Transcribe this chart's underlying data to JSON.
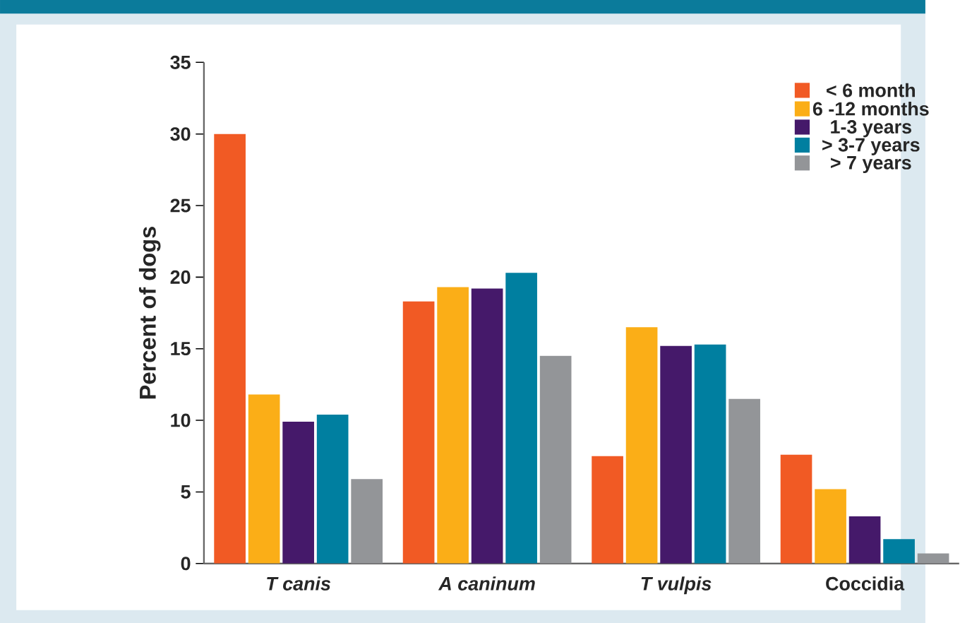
{
  "chart_data": {
    "type": "bar",
    "ylabel": "Percent of dogs",
    "categories": [
      "*T canis*",
      "*A caninum*",
      "*T vulpis*",
      "Coccidia"
    ],
    "series": [
      {
        "name": "< 6 month",
        "color": "#f15a24",
        "values": [
          30.0,
          18.3,
          7.5,
          7.6
        ]
      },
      {
        "name": "6 -12 months",
        "color": "#fbae17",
        "values": [
          11.8,
          19.3,
          16.5,
          5.2
        ]
      },
      {
        "name": "1-3 years",
        "color": "#45196a",
        "values": [
          9.9,
          19.2,
          15.2,
          3.3
        ]
      },
      {
        "name": "> 3-7 years",
        "color": "#007fa0",
        "values": [
          10.4,
          20.3,
          15.3,
          1.7
        ]
      },
      {
        "name": "> 7 years",
        "color": "#939598",
        "values": [
          5.9,
          14.5,
          11.5,
          0.7
        ]
      }
    ],
    "ylim": [
      0,
      35
    ],
    "yticks": [
      0,
      5,
      10,
      15,
      20,
      25,
      30,
      35
    ],
    "grid": false,
    "legend": "top right"
  }
}
